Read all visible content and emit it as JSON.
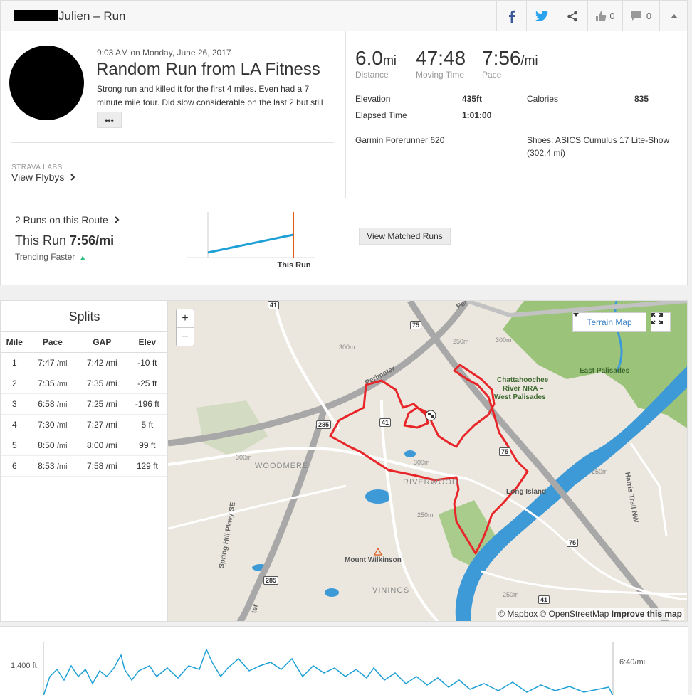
{
  "header": {
    "title": "Julien – Run",
    "kudos_count": "0",
    "comment_count": "0"
  },
  "activity": {
    "date": "9:03 AM on Monday, June 26, 2017",
    "name": "Random Run from LA Fitness",
    "description": "Strong run and killed it for the first 4 miles. Even had a 7 minute mile four. Did slow considerable on the last 2 but still",
    "more_label": "•••",
    "labs_label": "STRAVA LABS",
    "flyby_label": "View Flybys"
  },
  "stats": {
    "distance": {
      "value": "6.0",
      "unit": "mi",
      "label": "Distance"
    },
    "moving_time": {
      "value": "47:48",
      "label": "Moving Time"
    },
    "pace": {
      "value": "7:56",
      "unit": "/mi",
      "label": "Pace"
    },
    "elevation": {
      "label": "Elevation",
      "value": "435ft"
    },
    "calories": {
      "label": "Calories",
      "value": "835"
    },
    "elapsed": {
      "label": "Elapsed Time",
      "value": "1:01:00"
    },
    "device": "Garmin Forerunner 620",
    "shoes": "Shoes: ASICS Cumulus 17 Lite-Show",
    "shoes_distance": "(302.4 mi)"
  },
  "route": {
    "runs_label": "2 Runs on this Route",
    "this_run_prefix": "This Run",
    "this_run_pace": "7:56/mi",
    "trend": "Trending Faster",
    "chart_label": "This Run",
    "matched_button": "View Matched Runs"
  },
  "splits": {
    "title": "Splits",
    "headers": [
      "Mile",
      "Pace",
      "GAP",
      "Elev"
    ],
    "rows": [
      {
        "mile": "1",
        "pace": "7:47",
        "gap": "7:42 /mi",
        "elev": "-10 ft"
      },
      {
        "mile": "2",
        "pace": "7:35",
        "gap": "7:35 /mi",
        "elev": "-25 ft"
      },
      {
        "mile": "3",
        "pace": "6:58",
        "gap": "7:25 /mi",
        "elev": "-196 ft"
      },
      {
        "mile": "4",
        "pace": "7:30",
        "gap": "7:27 /mi",
        "elev": "5 ft"
      },
      {
        "mile": "5",
        "pace": "8:50",
        "gap": "8:00 /mi",
        "elev": "99 ft"
      },
      {
        "mile": "6",
        "pace": "8:53",
        "gap": "7:58 /mi",
        "elev": "129 ft"
      }
    ],
    "pace_unit": "/mi"
  },
  "map": {
    "zoom_in": "+",
    "zoom_out": "−",
    "layer": "Terrain Map",
    "attribution": "© Mapbox © OpenStreetMap",
    "improve": "Improve this map",
    "labels": {
      "chatt": "Chattahoochee",
      "chatt2": "River NRA –",
      "chatt3": "West Palisades",
      "east": "East Palisades",
      "woodmere": "WOODMERE",
      "riverwood": "RIVERWOOD",
      "long_island": "Long Island",
      "wilkinson": "Mount Wilkinson",
      "vinings": "VININGS",
      "perimeter": "Perimeter",
      "perimeter2": "Per",
      "spring_hill": "Spring Hill Pkwy SE",
      "harris": "Harris Trail NW",
      "ter": "ter",
      "h41a": "41",
      "h41b": "41",
      "h41c": "41",
      "h75a": "75",
      "h75b": "75",
      "h75c": "75",
      "h285a": "285",
      "h285b": "285",
      "c300a": "300m",
      "c300b": "300m",
      "c300c": "300m",
      "c300d": "300m",
      "c250a": "250m",
      "c250b": "250m",
      "c250c": "250m",
      "c250d": "250m"
    },
    "colors": {
      "route": "#e8262a",
      "water": "#3d9ad7",
      "park": "#9bc37a"
    }
  },
  "profile": {
    "left_label": "1,400 ft",
    "right_label": "6:40/mi",
    "line_color": "#1ea0d6"
  },
  "icons": [
    "facebook-icon",
    "twitter-icon",
    "share-icon",
    "kudos-icon",
    "comment-icon",
    "chevron-up-icon",
    "fullscreen-icon",
    "finish-flag-icon",
    "summit-icon"
  ]
}
